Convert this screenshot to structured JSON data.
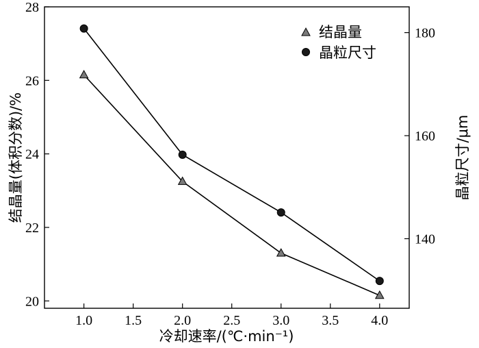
{
  "chart_data": {
    "type": "line",
    "x": [
      1.0,
      2.0,
      3.0,
      4.0
    ],
    "xlabel": "冷却速率/(℃·min⁻¹)",
    "xlim": [
      0.6,
      4.3
    ],
    "xticks": [
      "1.0",
      "1.5",
      "2.0",
      "2.5",
      "3.0",
      "3.5",
      "4.0"
    ],
    "ylabel_left": "结晶量(体积分数)/%",
    "ylim_left": [
      19.8,
      28
    ],
    "yticks_left": [
      "20",
      "22",
      "24",
      "26",
      "28"
    ],
    "ylabel_right": "晶粒尺寸/μm",
    "ylim_right": [
      126.5,
      185
    ],
    "yticks_right": [
      "140",
      "160",
      "180"
    ],
    "legend_position": "top-right",
    "series": [
      {
        "name": "结晶量",
        "axis": "left",
        "marker": "triangle",
        "color": "#7a7a7a",
        "values": [
          26.15,
          23.25,
          21.3,
          20.15
        ]
      },
      {
        "name": "晶粒尺寸",
        "axis": "right",
        "marker": "circle",
        "color": "#1a1a1a",
        "values": [
          180.8,
          156.3,
          145.1,
          131.8
        ]
      }
    ]
  }
}
